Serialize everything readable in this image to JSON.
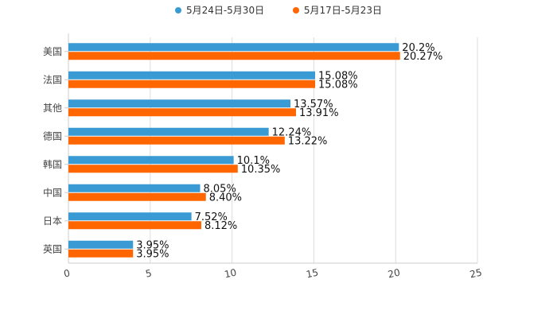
{
  "chart_data": {
    "type": "bar",
    "orientation": "horizontal",
    "title": "",
    "xlabel": "",
    "ylabel": "",
    "xlim": [
      0,
      25
    ],
    "xticks": [
      "0",
      "5",
      "10",
      "15",
      "20",
      "25"
    ],
    "grid": true,
    "legend_position": "top-center",
    "categories": [
      "美国",
      "法国",
      "其他",
      "德国",
      "韩国",
      "中国",
      "日本",
      "英国"
    ],
    "series": [
      {
        "name": "5月24日-5月30日",
        "color": "#3a9bd4",
        "values": [
          20.2,
          15.08,
          13.57,
          12.24,
          10.1,
          8.05,
          7.52,
          3.95
        ],
        "labels": [
          "20.2%",
          "15.08%",
          "13.57%",
          "12.24%",
          "10.1%",
          "8.05%",
          "7.52%",
          "3.95%"
        ]
      },
      {
        "name": "5月17日-5月23日",
        "color": "#ff6600",
        "values": [
          20.27,
          15.08,
          13.91,
          13.22,
          10.35,
          8.4,
          8.12,
          3.95
        ],
        "labels": [
          "20.27%",
          "15.08%",
          "13.91%",
          "13.22%",
          "10.35%",
          "8.40%",
          "8.12%",
          "3.95%"
        ]
      }
    ]
  }
}
